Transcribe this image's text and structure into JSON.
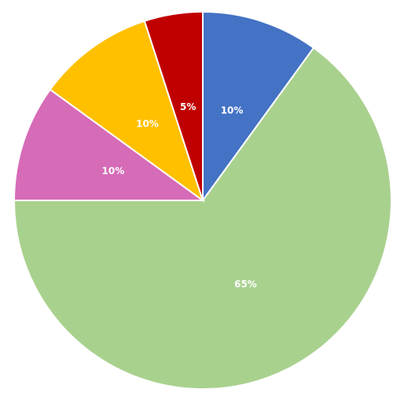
{
  "chart_data": {
    "type": "pie",
    "values": [
      10,
      65,
      10,
      10,
      5
    ],
    "value_labels": [
      "10%",
      "65%",
      "10%",
      "10%",
      "5%"
    ],
    "colors": [
      "#4472c4",
      "#a9d18e",
      "#d66bb8",
      "#ffc000",
      "#c00000"
    ]
  }
}
